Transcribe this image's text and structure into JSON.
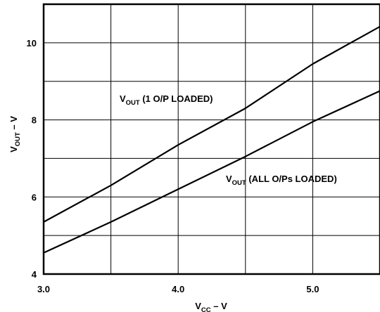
{
  "chart_data": {
    "type": "line",
    "xlim": [
      3.0,
      5.5
    ],
    "ylim": [
      4,
      11
    ],
    "x_ticks": [
      3.0,
      3.5,
      4.0,
      4.5,
      5.0,
      5.5
    ],
    "y_ticks": [
      4,
      5,
      6,
      7,
      8,
      9,
      10,
      11
    ],
    "x_tick_labels": [
      "3.0",
      "4.0",
      "5.0"
    ],
    "y_tick_labels": [
      "4",
      "6",
      "8",
      "10"
    ],
    "xlabel": {
      "main": "V",
      "sub": "CC",
      "rest": " – V"
    },
    "ylabel": {
      "main": "V",
      "sub": "OUT",
      "rest": " – V"
    },
    "grid": true,
    "series": [
      {
        "name": {
          "main": "V",
          "sub": "OUT",
          "rest": " (1 O/P LOADED)"
        },
        "x": [
          3.0,
          3.5,
          4.0,
          4.5,
          5.0,
          5.5
        ],
        "y": [
          5.35,
          6.3,
          7.35,
          8.3,
          9.45,
          10.42
        ]
      },
      {
        "name": {
          "main": "V",
          "sub": "OUT",
          "rest": " (ALL O/Ps LOADED)"
        },
        "x": [
          3.0,
          3.5,
          4.0,
          4.5,
          5.0,
          5.5
        ],
        "y": [
          4.55,
          5.35,
          6.2,
          7.05,
          7.95,
          8.75
        ]
      }
    ]
  }
}
